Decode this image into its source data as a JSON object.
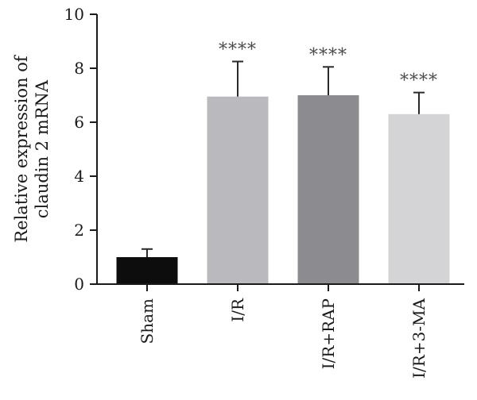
{
  "chart_data": {
    "type": "bar",
    "title": "",
    "xlabel": "",
    "ylabel_lines": [
      "Relative expression of",
      "claudin 2 mRNA"
    ],
    "ylim": [
      0,
      10
    ],
    "yticks": [
      0,
      2,
      4,
      6,
      8,
      10
    ],
    "categories": [
      "Sham",
      "I/R",
      "I/R+RAP",
      "I/R+3-MA"
    ],
    "values": [
      1.0,
      6.95,
      7.0,
      6.3
    ],
    "errors": [
      0.3,
      1.3,
      1.05,
      0.8
    ],
    "annotations": [
      "",
      "****",
      "****",
      "****"
    ],
    "colors": [
      "#0d0d0d",
      "#b9b9be",
      "#8c8c90",
      "#d4d4d6"
    ],
    "grid": false,
    "legend": "none"
  }
}
